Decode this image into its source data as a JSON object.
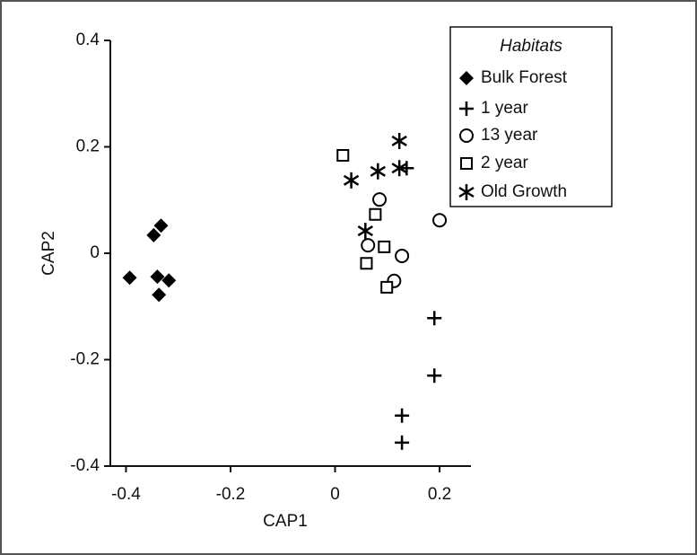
{
  "chart_data": {
    "type": "scatter",
    "xlabel": "CAP1",
    "ylabel": "CAP2",
    "legend_title": "Habitats",
    "legend_position": "upper right",
    "xlim": [
      -0.43,
      0.26
    ],
    "ylim": [
      -0.4,
      0.4
    ],
    "xticks": [
      -0.4,
      -0.2,
      0,
      0.2
    ],
    "yticks": [
      0.4,
      0.2,
      0,
      -0.2,
      -0.4
    ],
    "series": [
      {
        "name": "Bulk Forest",
        "marker": "diamond",
        "color": "#000000",
        "x": [
          -0.393,
          -0.347,
          -0.333,
          -0.34,
          -0.318,
          -0.337
        ],
        "y": [
          -0.046,
          0.034,
          0.052,
          -0.044,
          -0.051,
          -0.078
        ]
      },
      {
        "name": "1 year",
        "marker": "plus",
        "color": "#000000",
        "x": [
          0.137,
          0.19,
          0.19,
          0.128,
          0.128
        ],
        "y": [
          0.16,
          -0.122,
          -0.23,
          -0.305,
          -0.356
        ]
      },
      {
        "name": "13 year",
        "marker": "circle",
        "color": "#000000",
        "x": [
          0.085,
          0.063,
          0.128,
          0.113,
          0.2
        ],
        "y": [
          0.101,
          0.015,
          -0.005,
          -0.052,
          0.062
        ]
      },
      {
        "name": "2 year",
        "marker": "square",
        "color": "#000000",
        "x": [
          0.015,
          0.077,
          0.094,
          0.06,
          0.099
        ],
        "y": [
          0.184,
          0.073,
          0.012,
          -0.019,
          -0.064
        ]
      },
      {
        "name": "Old Growth",
        "marker": "asterisk",
        "color": "#000000",
        "x": [
          0.123,
          0.031,
          0.082,
          0.123,
          0.058
        ],
        "y": [
          0.211,
          0.137,
          0.154,
          0.16,
          0.042
        ]
      }
    ]
  }
}
